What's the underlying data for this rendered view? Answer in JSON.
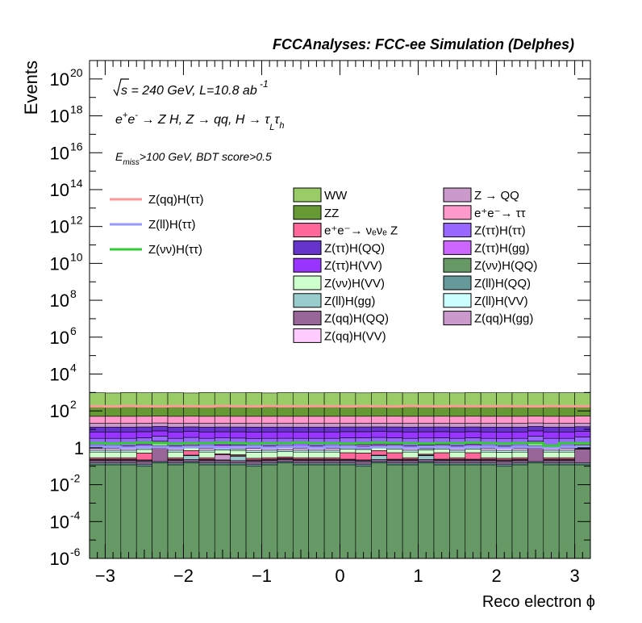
{
  "chart_data": {
    "type": "bar",
    "stacked": true,
    "title": "FCCAnalyses: FCC-ee Simulation (Delphes)",
    "xlabel": "Reco electron ϕ",
    "ylabel": "Events",
    "xlim": [
      -3.2,
      3.2
    ],
    "ylim": [
      1e-06,
      1e+21
    ],
    "log_y": true,
    "x_ticks": [
      "−3",
      "−2",
      "−1",
      "0",
      "1",
      "2",
      "3"
    ],
    "x_tick_values": [
      -3,
      -2,
      -1,
      0,
      1,
      2,
      3
    ],
    "y_ticks": [
      {
        "value": 1e-06,
        "base": "10",
        "exp": "-6"
      },
      {
        "value": 0.0001,
        "base": "10",
        "exp": "-4"
      },
      {
        "value": 0.01,
        "base": "10",
        "exp": "-2"
      },
      {
        "value": 1,
        "base": "1",
        "exp": ""
      },
      {
        "value": 100.0,
        "base": "10",
        "exp": "2"
      },
      {
        "value": 10000.0,
        "base": "10",
        "exp": "4"
      },
      {
        "value": 1000000.0,
        "base": "10",
        "exp": "6"
      },
      {
        "value": 100000000.0,
        "base": "10",
        "exp": "8"
      },
      {
        "value": 10000000000.0,
        "base": "10",
        "exp": "10"
      },
      {
        "value": 1000000000000.0,
        "base": "10",
        "exp": "12"
      },
      {
        "value": 100000000000000.0,
        "base": "10",
        "exp": "14"
      },
      {
        "value": 1e+16,
        "base": "10",
        "exp": "16"
      },
      {
        "value": 1e+18,
        "base": "10",
        "exp": "18"
      },
      {
        "value": 1e+20,
        "base": "10",
        "exp": "20"
      }
    ],
    "annotations": {
      "line1": {
        "sqrt": "s",
        "rest": " = 240 GeV, L=10.8 ab",
        "sup": " -1"
      },
      "line2": {
        "e": "e",
        "plus": "+",
        "e2": "e",
        "minus": "-",
        "proc": " → Z H, Z  → qq, H  → ",
        "tau1": "τ",
        "sub1": "L",
        "tau2": "τ",
        "sub2": "h"
      },
      "line3": {
        "E": "E",
        "sub": "miss",
        "rest": ">100 GeV, BDT score>0.5"
      }
    },
    "bins": {
      "low": -3.2,
      "high": 3.2,
      "count": 32
    },
    "stack": [
      {
        "name": "Z(νν)H(QQ)",
        "color": "#669966",
        "values": [
          0.12,
          0.12,
          0.12,
          0.1,
          0.15,
          0.12,
          0.15,
          0.12,
          0.12,
          0.12,
          0.1,
          0.12,
          0.15,
          0.12,
          0.12,
          0.12,
          0.12,
          0.1,
          0.15,
          0.12,
          0.12,
          0.15,
          0.12,
          0.12,
          0.12,
          0.12,
          0.1,
          0.12,
          0.15,
          0.12,
          0.12,
          0.12
        ]
      },
      {
        "name": "Z(ll)H(QQ)",
        "color": "#669999",
        "values": [
          0.03,
          0.03,
          0.03,
          0.03,
          0.03,
          0.03,
          0.03,
          0.03,
          0.03,
          0.03,
          0.03,
          0.03,
          0.03,
          0.03,
          0.03,
          0.03,
          0.03,
          0.03,
          0.03,
          0.03,
          0.03,
          0.03,
          0.03,
          0.03,
          0.03,
          0.03,
          0.03,
          0.03,
          0.03,
          0.03,
          0.03,
          0.03
        ]
      },
      {
        "name": "Z(qq)H(QQ)",
        "color": "#996699",
        "values": [
          0.05,
          0.05,
          0.05,
          0.05,
          0.8,
          0.05,
          0.05,
          0.05,
          0.05,
          0.05,
          0.05,
          0.05,
          0.05,
          0.05,
          0.05,
          0.05,
          0.05,
          0.05,
          0.05,
          0.05,
          0.05,
          0.05,
          0.05,
          0.05,
          0.05,
          0.05,
          0.05,
          0.05,
          0.8,
          0.05,
          0.05,
          0.7
        ]
      },
      {
        "name": "Z(ll)H(gg)",
        "color": "#99cccc",
        "values": [
          0.02,
          0.02,
          0.02,
          0.02,
          0.02,
          0.02,
          0.15,
          0.02,
          0.02,
          0.15,
          0.02,
          0.02,
          0.02,
          0.02,
          0.02,
          0.02,
          0.02,
          0.02,
          0.15,
          0.02,
          0.02,
          0.15,
          0.02,
          0.02,
          0.02,
          0.02,
          0.02,
          0.02,
          0.02,
          0.02,
          0.02,
          0.02
        ]
      },
      {
        "name": "Z(qq)H(gg)",
        "color": "#cc99cc",
        "values": [
          0.02,
          0.02,
          0.02,
          0.02,
          0.02,
          0.02,
          0.02,
          0.02,
          0.2,
          0.02,
          0.02,
          0.02,
          0.02,
          0.02,
          0.02,
          0.02,
          0.02,
          0.02,
          0.02,
          0.02,
          0.02,
          0.02,
          0.02,
          0.02,
          0.02,
          0.02,
          0.02,
          0.02,
          0.02,
          0.02,
          0.02,
          0.02
        ]
      },
      {
        "name": "e⁺e⁻→ νₑνₑ Z",
        "color": "#ff6699",
        "values": [
          0.05,
          0.05,
          0.05,
          0.3,
          0.3,
          0.05,
          0.3,
          0.05,
          0.05,
          0.05,
          0.05,
          0.05,
          0.05,
          0.05,
          0.05,
          0.05,
          0.3,
          0.3,
          0.3,
          0.3,
          0.05,
          0.05,
          0.3,
          0.05,
          0.3,
          0.05,
          0.05,
          0.05,
          0.3,
          0.05,
          0.05,
          0.05
        ]
      },
      {
        "name": "Z(νν)H(VV)",
        "color": "#ccffcc",
        "values": [
          0.3,
          0.3,
          0.3,
          0.3,
          0.3,
          0.3,
          0.3,
          0.3,
          0.3,
          0.3,
          0.3,
          0.3,
          0.3,
          0.3,
          0.3,
          0.3,
          0.3,
          0.3,
          0.3,
          0.3,
          0.3,
          0.3,
          0.3,
          0.3,
          0.3,
          0.3,
          0.3,
          0.3,
          0.3,
          0.3,
          0.3,
          0.3
        ]
      },
      {
        "name": "Z(ll)H(VV)",
        "color": "#ccffff",
        "values": [
          0.15,
          0.15,
          0.15,
          0.15,
          0.15,
          0.15,
          0.15,
          0.15,
          0.15,
          0.15,
          0.15,
          0.15,
          0.15,
          0.15,
          0.15,
          0.15,
          0.15,
          0.15,
          0.15,
          0.15,
          0.15,
          0.15,
          0.15,
          0.15,
          0.15,
          0.15,
          0.15,
          0.15,
          0.15,
          0.15,
          0.15,
          0.15
        ]
      },
      {
        "name": "Z(qq)H(VV)",
        "color": "#ffccff",
        "values": [
          0.2,
          0.2,
          0.2,
          0.2,
          0.2,
          0.2,
          0.2,
          0.2,
          0.2,
          0.2,
          0.2,
          0.2,
          0.2,
          0.2,
          0.2,
          0.2,
          0.2,
          0.2,
          0.2,
          0.2,
          0.2,
          0.2,
          0.2,
          0.2,
          0.2,
          0.2,
          0.2,
          0.2,
          0.2,
          0.2,
          0.2,
          0.2
        ]
      },
      {
        "name": "Z(ττ)H(gg)",
        "color": "#cc66ff",
        "values": [
          0.3,
          0.3,
          0.3,
          0.3,
          0.3,
          0.3,
          0.3,
          0.3,
          0.3,
          0.3,
          0.3,
          0.3,
          0.3,
          0.3,
          0.3,
          0.3,
          0.3,
          0.3,
          0.3,
          0.3,
          0.3,
          0.3,
          0.3,
          0.3,
          0.3,
          0.3,
          0.3,
          0.3,
          0.3,
          0.3,
          0.3,
          0.3
        ]
      },
      {
        "name": "Z(ττ)H(ττ)",
        "color": "#9966ff",
        "values": [
          2,
          2,
          2,
          2,
          2,
          2,
          2,
          2,
          2,
          2,
          2,
          2,
          2,
          2,
          2,
          2,
          2,
          2,
          2,
          2,
          2,
          2,
          2,
          2,
          2,
          2,
          2,
          2,
          2,
          2,
          2,
          2
        ]
      },
      {
        "name": "Z(ττ)H(VV)",
        "color": "#9933ff",
        "values": [
          4,
          4,
          4,
          4,
          4,
          4,
          4,
          4,
          4,
          4,
          4,
          4,
          4,
          4,
          4,
          4,
          4,
          4,
          4,
          4,
          4,
          4,
          4,
          4,
          4,
          4,
          4,
          4,
          4,
          4,
          4,
          4
        ]
      },
      {
        "name": "Z(ττ)H(QQ)",
        "color": "#6633cc",
        "values": [
          6,
          6,
          6,
          6,
          6,
          6,
          6,
          6,
          6,
          6,
          6,
          6,
          6,
          6,
          6,
          6,
          6,
          6,
          6,
          6,
          6,
          6,
          6,
          6,
          6,
          6,
          6,
          6,
          6,
          6,
          6,
          6
        ]
      },
      {
        "name": "Z → QQ",
        "color": "#cc99cc",
        "values": [
          8,
          8,
          8,
          8,
          8,
          8,
          8,
          8,
          8,
          8,
          8,
          8,
          8,
          8,
          8,
          8,
          8,
          8,
          8,
          8,
          8,
          8,
          8,
          8,
          8,
          8,
          8,
          8,
          8,
          8,
          8,
          8
        ]
      },
      {
        "name": "e⁺e⁻→ ττ",
        "color": "#ff99cc",
        "values": [
          30,
          30,
          30,
          30,
          30,
          30,
          30,
          30,
          30,
          30,
          30,
          30,
          30,
          30,
          30,
          30,
          30,
          30,
          30,
          30,
          30,
          30,
          30,
          30,
          30,
          30,
          30,
          30,
          30,
          30,
          30,
          30
        ]
      },
      {
        "name": "ZZ",
        "color": "#669933",
        "values": [
          120,
          110,
          130,
          120,
          115,
          125,
          120,
          118,
          122,
          130,
          120,
          112,
          125,
          120,
          118,
          124,
          120,
          116,
          126,
          120,
          114,
          128,
          120,
          122,
          118,
          120,
          126,
          114,
          120,
          124,
          116,
          120
        ]
      },
      {
        "name": "WW",
        "color": "#99cc66",
        "values": [
          800,
          780,
          820,
          790,
          810,
          800,
          770,
          830,
          800,
          790,
          820,
          780,
          810,
          800,
          790,
          805,
          800,
          785,
          815,
          800,
          790,
          810,
          800,
          780,
          820,
          800,
          790,
          810,
          800,
          795,
          805,
          800
        ]
      }
    ],
    "signal_lines": [
      {
        "name": "Z(qq)H(ττ)",
        "color": "#ff9999",
        "values": [
          180,
          175,
          185,
          180,
          178,
          182,
          180,
          176,
          184,
          180,
          178,
          182,
          180,
          179,
          181,
          180,
          178,
          182,
          180,
          176,
          184,
          180,
          178,
          182,
          180,
          179,
          181,
          180,
          178,
          182,
          180,
          180
        ]
      },
      {
        "name": "Z(ll)H(ττ)",
        "color": "#9999ff",
        "values": [
          1.1,
          1.1,
          1.0,
          1.1,
          1.1,
          1.0,
          1.1,
          1.1,
          1.0,
          1.1,
          1.1,
          1.0,
          1.1,
          1.1,
          1.0,
          1.1,
          1.1,
          1.0,
          1.1,
          1.1,
          1.0,
          1.1,
          1.1,
          1.0,
          1.1,
          1.1,
          1.0,
          1.1,
          1.1,
          1.0,
          1.1,
          1.1
        ]
      },
      {
        "name": "Z(νν)H(ττ)",
        "color": "#33cc33",
        "values": [
          1.8,
          1.7,
          1.8,
          1.9,
          1.8,
          1.7,
          1.8,
          1.8,
          1.9,
          1.8,
          1.7,
          1.8,
          1.8,
          1.9,
          1.8,
          1.8,
          1.7,
          1.8,
          1.9,
          1.8,
          1.8,
          1.7,
          1.8,
          1.8,
          1.9,
          1.8,
          1.7,
          1.8,
          1.8,
          1.3,
          1.8,
          1.8
        ]
      }
    ],
    "legend": {
      "placement": "top-right",
      "signals": [
        {
          "label": "Z(qq)H(ττ)",
          "color": "#ff9999"
        },
        {
          "label": "Z(ll)H(ττ)",
          "color": "#9999ff"
        },
        {
          "label": "Z(νν)H(ττ)",
          "color": "#33cc33"
        }
      ],
      "col1": [
        {
          "label": "WW",
          "color": "#99cc66"
        },
        {
          "label": "ZZ",
          "color": "#669933"
        },
        {
          "label": "e⁺e⁻→ νₑνₑ Z",
          "color": "#ff6699"
        },
        {
          "label": "Z(ττ)H(QQ)",
          "color": "#6633cc"
        },
        {
          "label": "Z(ττ)H(VV)",
          "color": "#9933ff"
        },
        {
          "label": "Z(νν)H(VV)",
          "color": "#ccffcc"
        },
        {
          "label": "Z(ll)H(gg)",
          "color": "#99cccc"
        },
        {
          "label": "Z(qq)H(QQ)",
          "color": "#996699"
        },
        {
          "label": "Z(qq)H(VV)",
          "color": "#ffccff"
        }
      ],
      "col2": [
        {
          "label": "Z → QQ",
          "color": "#cc99cc"
        },
        {
          "label": "e⁺e⁻→ ττ",
          "color": "#ff99cc"
        },
        {
          "label": "Z(ττ)H(ττ)",
          "color": "#9966ff"
        },
        {
          "label": "Z(ττ)H(gg)",
          "color": "#cc66ff"
        },
        {
          "label": "Z(νν)H(QQ)",
          "color": "#669966"
        },
        {
          "label": "Z(ll)H(QQ)",
          "color": "#669999"
        },
        {
          "label": "Z(ll)H(VV)",
          "color": "#ccffff"
        },
        {
          "label": "Z(qq)H(gg)",
          "color": "#cc99cc"
        }
      ]
    }
  }
}
